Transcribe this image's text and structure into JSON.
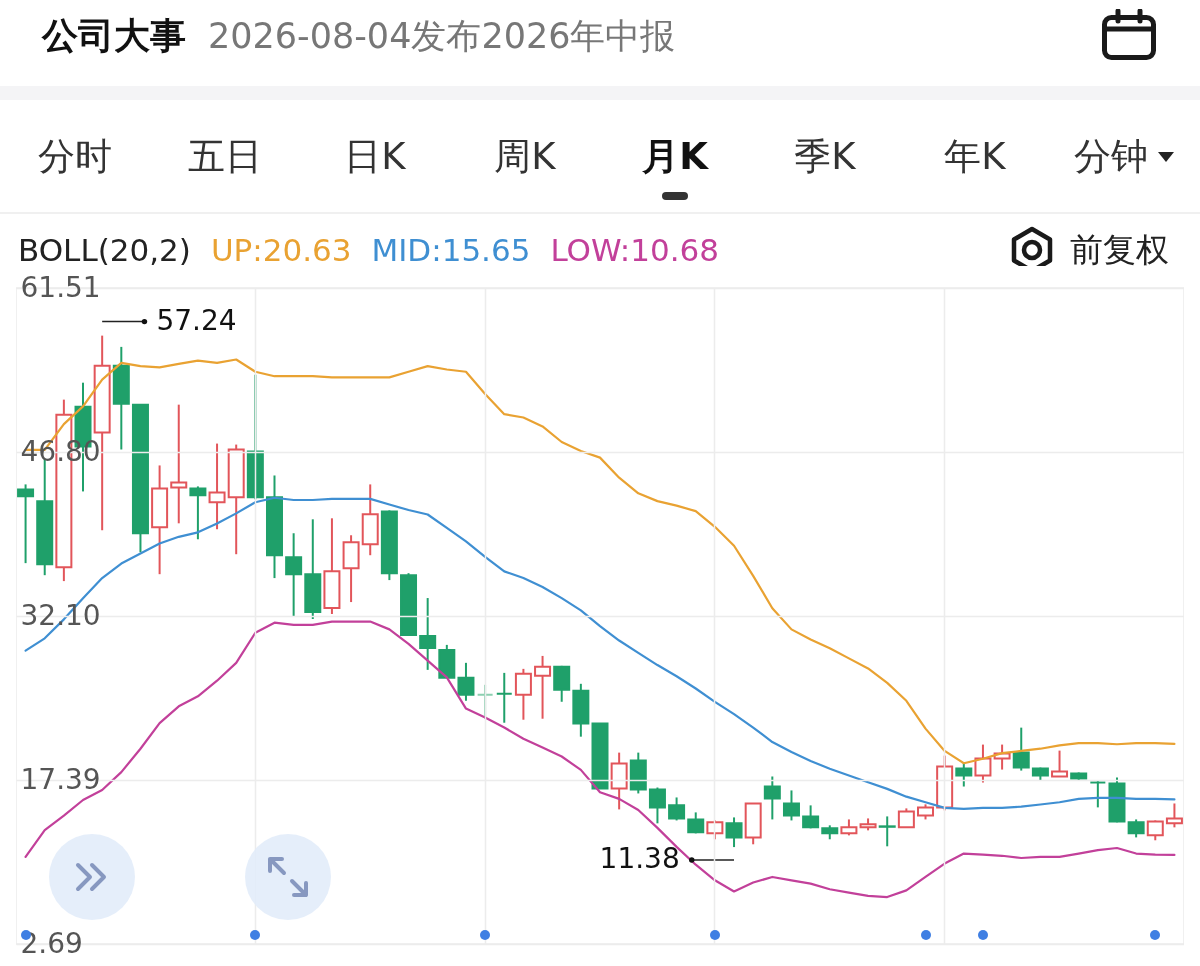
{
  "chart_data": {
    "type": "candlestick",
    "title": "公司大事",
    "subtitle": "2026-08-04发布2026年中报",
    "legend_title": "BOLL(20,2)",
    "categories": [
      null,
      null,
      null,
      null,
      null,
      null,
      null,
      null,
      null,
      null,
      null,
      null,
      null,
      null,
      null,
      null,
      null,
      null,
      null,
      null,
      null,
      null,
      null,
      null,
      null,
      null,
      null,
      null,
      null,
      null,
      null,
      null,
      null,
      null,
      null,
      null,
      null,
      null,
      null,
      null,
      null,
      null,
      null,
      null,
      null,
      null,
      null,
      null,
      null,
      null,
      null,
      null,
      null,
      null,
      null,
      null,
      null,
      null,
      null,
      null,
      null
    ],
    "ohlc": [
      [
        43.45,
        43.9,
        36.84,
        42.83
      ],
      [
        42.38,
        46.22,
        35.76,
        36.75
      ],
      [
        36.48,
        51.5,
        35.23,
        50.15
      ],
      [
        50.87,
        53.02,
        43.27,
        47.3
      ],
      [
        48.55,
        57.24,
        39.79,
        54.54
      ],
      [
        54.54,
        56.23,
        47.03,
        51.14
      ],
      [
        51.05,
        51.05,
        37.82,
        39.52
      ],
      [
        40.05,
        45.6,
        35.85,
        43.54
      ],
      [
        43.63,
        51.05,
        40.41,
        44.08
      ],
      [
        43.54,
        43.72,
        38.98,
        42.92
      ],
      [
        42.29,
        47.56,
        39.88,
        43.18
      ],
      [
        42.74,
        47.47,
        37.64,
        47.03
      ],
      [
        46.85,
        53.73,
        42.56,
        42.74
      ],
      [
        42.74,
        44.7,
        35.5,
        37.55
      ],
      [
        37.37,
        39.52,
        32.01,
        35.85
      ],
      [
        35.85,
        40.77,
        31.83,
        32.46
      ],
      [
        32.81,
        40.86,
        32.28,
        36.12
      ],
      [
        36.39,
        39.34,
        33.35,
        38.71
      ],
      [
        38.54,
        43.9,
        37.55,
        41.22
      ],
      [
        41.48,
        41.57,
        35.32,
        35.94
      ],
      [
        35.76,
        35.94,
        30.31,
        30.4
      ],
      [
        30.31,
        33.71,
        27.27,
        29.24
      ],
      [
        29.06,
        29.51,
        26.56,
        26.56
      ],
      [
        26.56,
        27.9,
        24.5,
        25.04
      ],
      [
        25.04,
        25.93,
        22.89,
        25.04
      ],
      [
        25.13,
        27.0,
        22.53,
        25.13
      ],
      [
        25.04,
        27.36,
        22.8,
        26.92
      ],
      [
        26.74,
        28.52,
        22.89,
        27.54
      ],
      [
        27.54,
        27.63,
        24.41,
        25.48
      ],
      [
        25.39,
        26.02,
        21.28,
        22.45
      ],
      [
        22.45,
        22.45,
        16.63,
        16.63
      ],
      [
        16.63,
        19.85,
        14.76,
        18.87
      ],
      [
        19.14,
        19.85,
        16.19,
        16.55
      ],
      [
        16.55,
        16.72,
        13.51,
        14.94
      ],
      [
        15.12,
        15.83,
        13.77,
        13.95
      ],
      [
        13.86,
        14.49,
        12.61,
        12.7
      ],
      [
        12.61,
        13.77,
        12.08,
        13.6
      ],
      [
        13.51,
        14.04,
        11.38,
        12.25
      ],
      [
        12.25,
        15.29,
        11.63,
        15.29
      ],
      [
        16.81,
        17.71,
        13.86,
        15.74
      ],
      [
        15.29,
        16.46,
        13.77,
        14.22
      ],
      [
        14.13,
        15.12,
        13.06,
        13.15
      ],
      [
        13.06,
        13.33,
        12.08,
        12.61
      ],
      [
        12.61,
        13.86,
        12.43,
        13.15
      ],
      [
        13.15,
        13.95,
        12.88,
        13.42
      ],
      [
        13.24,
        14.13,
        11.45,
        13.2
      ],
      [
        13.15,
        14.85,
        13.15,
        14.58
      ],
      [
        14.22,
        15.21,
        13.86,
        14.94
      ],
      [
        14.94,
        19.58,
        14.67,
        18.6
      ],
      [
        18.42,
        18.87,
        16.81,
        17.8
      ],
      [
        17.8,
        20.57,
        17.17,
        19.32
      ],
      [
        19.32,
        20.57,
        18.33,
        19.76
      ],
      [
        19.85,
        22.09,
        18.24,
        18.51
      ],
      [
        18.42,
        18.51,
        17.35,
        17.8
      ],
      [
        17.71,
        20.03,
        17.71,
        18.15
      ],
      [
        17.98,
        18.07,
        17.35,
        17.53
      ],
      [
        17.17,
        17.35,
        14.94,
        17.17
      ],
      [
        17.08,
        17.62,
        13.6,
        13.68
      ],
      [
        13.6,
        13.86,
        12.25,
        12.61
      ],
      [
        12.43,
        13.77,
        11.99,
        13.68
      ],
      [
        13.51,
        15.29,
        13.15,
        13.95
      ]
    ],
    "colors": [
      "#1fa06a",
      "#1fa06a",
      "#e2555a",
      "#1fa06a",
      "#e2555a",
      "#1fa06a",
      "#1fa06a",
      "#e2555a",
      "#e2555a",
      "#1fa06a",
      "#e2555a",
      "#e2555a",
      "#1fa06a",
      "#1fa06a",
      "#1fa06a",
      "#1fa06a",
      "#e2555a",
      "#e2555a",
      "#e2555a",
      "#1fa06a",
      "#1fa06a",
      "#1fa06a",
      "#1fa06a",
      "#1fa06a",
      "#8ccfb0",
      "#1fa06a",
      "#e2555a",
      "#e2555a",
      "#1fa06a",
      "#1fa06a",
      "#1fa06a",
      "#e2555a",
      "#1fa06a",
      "#1fa06a",
      "#1fa06a",
      "#1fa06a",
      "#e2555a",
      "#1fa06a",
      "#e2555a",
      "#1fa06a",
      "#1fa06a",
      "#1fa06a",
      "#1fa06a",
      "#e2555a",
      "#e2555a",
      "#1fa06a",
      "#e2555a",
      "#e2555a",
      "#e2555a",
      "#1fa06a",
      "#e2555a",
      "#e2555a",
      "#1fa06a",
      "#1fa06a",
      "#e2555a",
      "#1fa06a",
      "#1fa06a",
      "#1fa06a",
      "#1fa06a",
      "#e2555a",
      "#e2555a"
    ],
    "series": [
      {
        "name": "UP:20.63",
        "type": "line",
        "color": "#e9a232",
        "values": [
          47.0,
          47.0,
          49.3,
          50.9,
          53.3,
          54.8,
          54.5,
          54.4,
          54.7,
          55.0,
          54.8,
          55.1,
          54.0,
          53.6,
          53.6,
          53.6,
          53.5,
          53.5,
          53.5,
          53.5,
          54.0,
          54.5,
          54.2,
          54.0,
          52.0,
          50.2,
          49.9,
          49.1,
          47.7,
          46.9,
          46.3,
          44.5,
          43.1,
          42.4,
          42.0,
          41.5,
          40.1,
          38.4,
          35.7,
          32.8,
          30.9,
          30.0,
          29.2,
          28.3,
          27.4,
          26.1,
          24.5,
          22.0,
          20.0,
          18.9,
          19.3,
          19.8,
          20.0,
          20.2,
          20.5,
          20.7,
          20.7,
          20.6,
          20.7,
          20.7,
          20.63
        ]
      },
      {
        "name": "MID:15.65",
        "type": "line",
        "color": "#3f8fd2",
        "values": [
          29.0,
          30.1,
          31.8,
          33.7,
          35.5,
          36.8,
          37.7,
          38.6,
          39.2,
          39.6,
          40.4,
          41.3,
          42.3,
          42.7,
          42.5,
          42.5,
          42.6,
          42.6,
          42.6,
          42.1,
          41.6,
          41.2,
          40.0,
          38.8,
          37.4,
          36.1,
          35.5,
          34.7,
          33.7,
          32.6,
          31.2,
          29.9,
          28.8,
          27.7,
          26.7,
          25.6,
          24.4,
          23.3,
          22.1,
          20.8,
          19.9,
          19.1,
          18.4,
          17.8,
          17.2,
          16.6,
          15.9,
          15.4,
          14.9,
          14.8,
          14.9,
          14.9,
          15.0,
          15.2,
          15.4,
          15.7,
          15.8,
          15.8,
          15.7,
          15.7,
          15.65
        ]
      },
      {
        "name": "LOW:10.68",
        "type": "line",
        "color": "#c2409a",
        "values": [
          10.5,
          12.9,
          14.2,
          15.6,
          16.5,
          18.1,
          20.2,
          22.5,
          24.0,
          24.9,
          26.3,
          27.9,
          30.6,
          31.5,
          31.3,
          31.3,
          31.6,
          31.6,
          31.6,
          30.9,
          29.6,
          28.1,
          26.6,
          23.8,
          23.0,
          22.1,
          21.1,
          20.3,
          19.5,
          18.3,
          16.3,
          15.7,
          14.7,
          13.1,
          11.4,
          9.8,
          8.4,
          7.4,
          8.2,
          8.7,
          8.4,
          8.1,
          7.6,
          7.3,
          7.0,
          6.9,
          7.5,
          8.7,
          9.9,
          10.8,
          10.7,
          10.6,
          10.4,
          10.5,
          10.5,
          10.8,
          11.1,
          11.3,
          10.8,
          10.7,
          10.68
        ]
      }
    ],
    "ylim": [
      2.69,
      61.51
    ],
    "yticks": [
      61.51,
      {
        "value": 46.8,
        "label": "46.80"
      },
      {
        "value": 32.1,
        "label": "32.10"
      },
      17.39,
      2.69
    ],
    "grid": true,
    "legend": "top left",
    "tick_labels": "y",
    "annotations": [
      "分时",
      "五日",
      "日K",
      "周K",
      "月K",
      "季K",
      "年K",
      "分钟",
      "前复权",
      "57.24",
      "11.38"
    ]
  }
}
